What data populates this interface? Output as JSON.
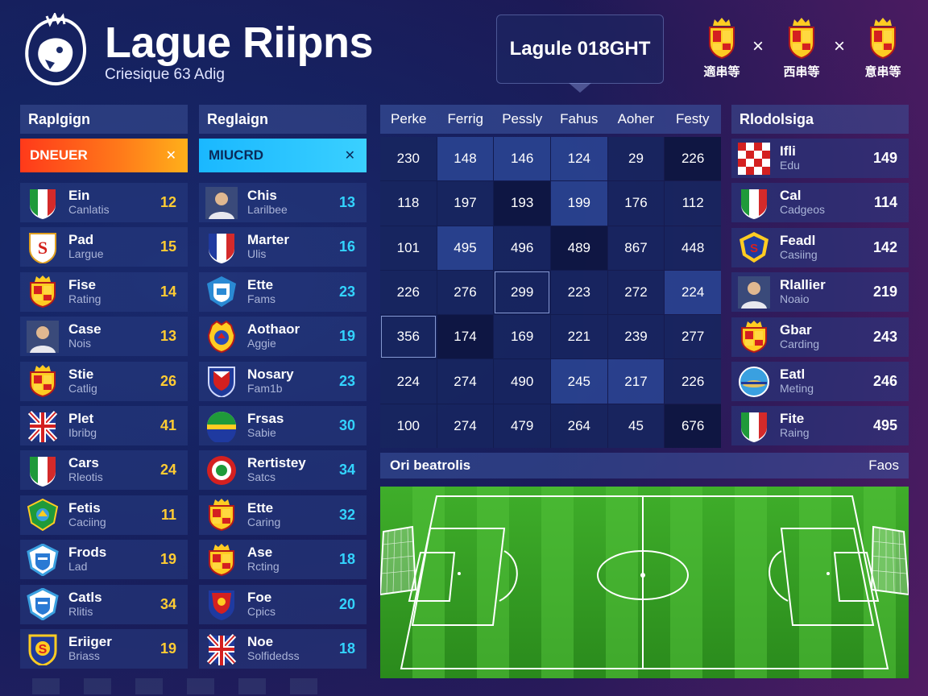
{
  "header": {
    "title": "Lague Riipns",
    "subtitle": "Criesique 63 Adig",
    "center_label": "Lagule 018GHT",
    "matchups": [
      "適串等",
      "西串等",
      "意串等"
    ],
    "vs_symbol": "×"
  },
  "left_panel": {
    "title": "Raplgign",
    "filter_label": "DNEUER",
    "filter_close": "✕",
    "rows": [
      {
        "name": "Ein",
        "sub": "Canlatis",
        "value": "12",
        "icon": "italy-flag-icon"
      },
      {
        "name": "Pad",
        "sub": "Largue",
        "value": "15",
        "icon": "s-crest-icon"
      },
      {
        "name": "Fise",
        "sub": "Rating",
        "value": "14",
        "icon": "spain-crest-icon"
      },
      {
        "name": "Case",
        "sub": "Nois",
        "value": "13",
        "icon": "player-avatar-icon"
      },
      {
        "name": "Stie",
        "sub": "Catlig",
        "value": "26",
        "icon": "spain-crest-icon"
      },
      {
        "name": "Plet",
        "sub": "Ibribg",
        "value": "41",
        "icon": "union-jack-icon"
      },
      {
        "name": "Cars",
        "sub": "Rleotis",
        "value": "24",
        "icon": "italy-flag-icon"
      },
      {
        "name": "Fetis",
        "sub": "Caciing",
        "value": "11",
        "icon": "green-crest-icon"
      },
      {
        "name": "Frods",
        "sub": "Lad",
        "value": "19",
        "icon": "blue-shield-icon"
      },
      {
        "name": "Catls",
        "sub": "Rlitis",
        "value": "34",
        "icon": "blue-shield-icon"
      },
      {
        "name": "Eriiger",
        "sub": "Briass",
        "value": "19",
        "icon": "yellow-crest-icon"
      }
    ]
  },
  "mid_panel": {
    "title": "Reglaign",
    "filter_label": "MIUCRD",
    "filter_close": "✕",
    "rows": [
      {
        "name": "Chis",
        "sub": "Larilbee",
        "value": "13",
        "icon": "player-avatar-icon"
      },
      {
        "name": "Marter",
        "sub": "Ulis",
        "value": "16",
        "icon": "france-flag-icon"
      },
      {
        "name": "Ette",
        "sub": "Fams",
        "value": "23",
        "icon": "white-crest-icon"
      },
      {
        "name": "Aothaor",
        "sub": "Aggie",
        "value": "19",
        "icon": "gold-crest-icon"
      },
      {
        "name": "Nosary",
        "sub": "Fam1b",
        "value": "23",
        "icon": "red-shield-icon"
      },
      {
        "name": "Frsas",
        "sub": "Sabie",
        "value": "30",
        "icon": "tricolor-ball-icon"
      },
      {
        "name": "Rertistey",
        "sub": "Satcs",
        "value": "34",
        "icon": "red-ring-icon"
      },
      {
        "name": "Ette",
        "sub": "Caring",
        "value": "32",
        "icon": "spain-crest-icon"
      },
      {
        "name": "Ase",
        "sub": "Rcting",
        "value": "18",
        "icon": "spain-crest-icon"
      },
      {
        "name": "Foe",
        "sub": "Cpics",
        "value": "20",
        "icon": "red-blue-crest-icon"
      },
      {
        "name": "Noe",
        "sub": "Solfidedss",
        "value": "18",
        "icon": "union-jack-icon"
      }
    ]
  },
  "stats_grid": {
    "headers": [
      "Perke",
      "Ferrig",
      "Pessly",
      "Fahus",
      "Aoher",
      "Festy"
    ],
    "rows": [
      [
        "230",
        "148",
        "146",
        "124",
        "29",
        "226"
      ],
      [
        "118",
        "197",
        "193",
        "199",
        "176",
        "112"
      ],
      [
        "101",
        "495",
        "496",
        "489",
        "867",
        "448"
      ],
      [
        "226",
        "276",
        "299",
        "223",
        "272",
        "224"
      ],
      [
        "356",
        "174",
        "169",
        "221",
        "239",
        "277"
      ],
      [
        "224",
        "274",
        "490",
        "245",
        "217",
        "226"
      ],
      [
        "100",
        "274",
        "479",
        "264",
        "45",
        "676"
      ]
    ]
  },
  "right_panel": {
    "title": "Rlodolsiga",
    "rows": [
      {
        "name": "Ifli",
        "sub": "Edu",
        "value": "149",
        "icon": "checker-crest-icon"
      },
      {
        "name": "Cal",
        "sub": "Cadgeos",
        "value": "114",
        "icon": "italy-flag-icon"
      },
      {
        "name": "Feadl",
        "sub": "Casiing",
        "value": "142",
        "icon": "blue-yellow-crest-icon"
      },
      {
        "name": "Rlallier",
        "sub": "Noaio",
        "value": "219",
        "icon": "player-avatar-icon"
      },
      {
        "name": "Gbar",
        "sub": "Carding",
        "value": "243",
        "icon": "spain-crest-icon"
      },
      {
        "name": "Eatl",
        "sub": "Meting",
        "value": "246",
        "icon": "globe-crest-icon"
      },
      {
        "name": "Fite",
        "sub": "Raing",
        "value": "495",
        "icon": "italy-flag-icon"
      }
    ]
  },
  "field": {
    "title": "Ori beatrolis",
    "right_label": "Faos"
  }
}
